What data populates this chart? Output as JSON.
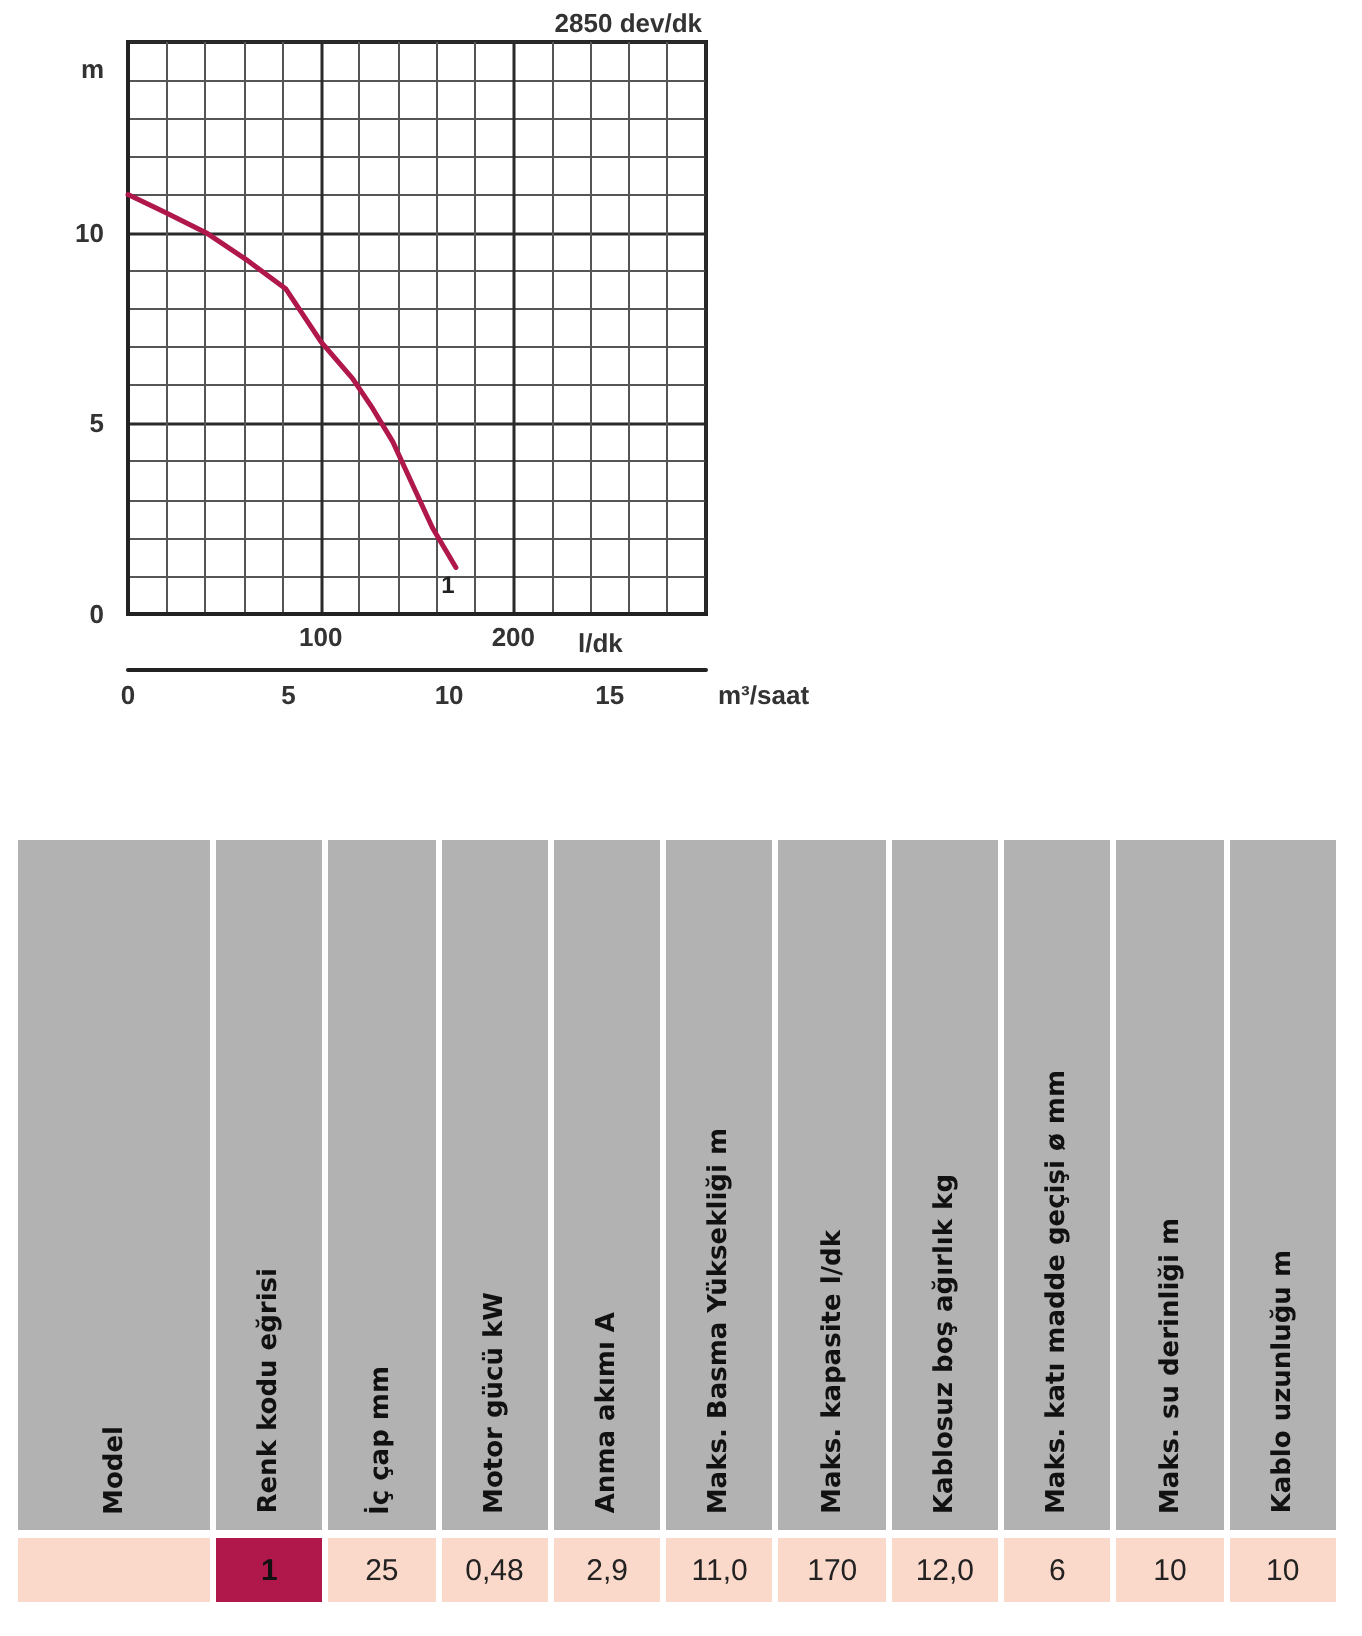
{
  "chart_data": [
    {
      "type": "line",
      "title": "2850 dev/dk",
      "xlabel": "l/dk",
      "ylabel": "m",
      "x2label": "m³/saat",
      "xlim": [
        0,
        300
      ],
      "xticks": [
        {
          "value": 0,
          "label": null
        },
        100,
        200
      ],
      "ylim": [
        0,
        15
      ],
      "yticks": [
        0,
        5,
        10
      ],
      "x2lim": [
        0,
        18
      ],
      "x2ticks": [
        0,
        5,
        10,
        15
      ],
      "grid": true,
      "legend": false,
      "marker": "none",
      "line_style": "solid",
      "series": [
        {
          "name": "1",
          "color": "#b0174b",
          "x": [
            0,
            19.7,
            40.5,
            61.2,
            82,
            100.3,
            116.6,
            127,
            137.4,
            147.7,
            158,
            170.2
          ],
          "values": [
            11,
            10.52,
            10,
            9.3,
            8.52,
            7.13,
            6.17,
            5.39,
            4.52,
            3.39,
            2.26,
            1.22
          ]
        }
      ]
    },
    {
      "type": "other",
      "categories": [
        "Model",
        "Renk kodu eğrisi",
        "İç çap mm",
        "Motor gücü kW",
        "Anma akımı A",
        "Maks.  Basma Yüksekliği m",
        "Maks.  kapasite l/dk",
        "Kablosuz boş ağırlık kg",
        "Maks.  katı madde geçişi ø mm",
        "Maks.  su derinliği m",
        "Kablo uzunluğu m"
      ],
      "value_labels": [
        null,
        "1",
        "25",
        "0,48",
        "2,9",
        "11,0",
        "170",
        "12,0",
        "6",
        "10",
        "10"
      ]
    }
  ]
}
